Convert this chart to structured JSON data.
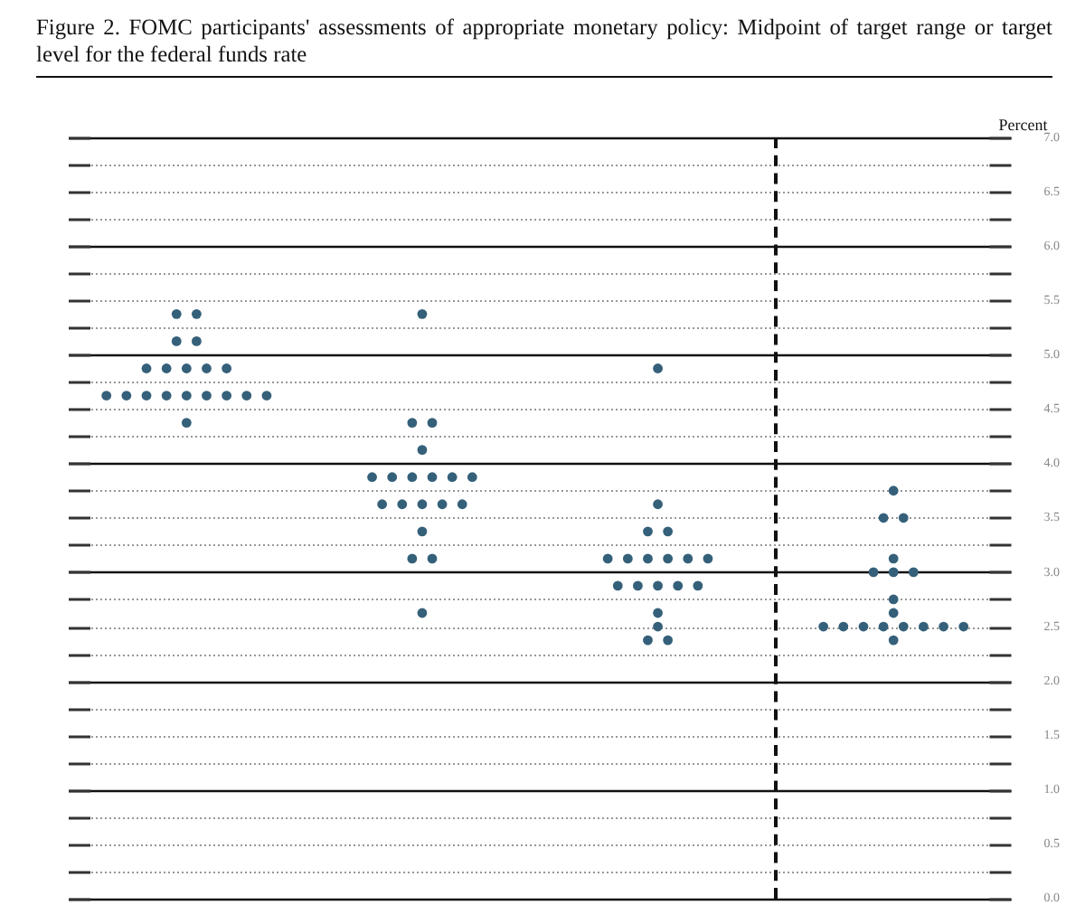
{
  "chart_data": {
    "type": "scatter",
    "title": "Figure 2.  FOMC participants' assessments of appropriate monetary policy: Midpoint of target range or target level for the federal funds rate",
    "ylabel": "Percent",
    "categories": [
      null,
      null,
      null,
      null
    ],
    "series": [
      {
        "color": "#35607a",
        "values": [
          5.375,
          5.375,
          4.875,
          3.75
        ]
      },
      {
        "color": "#35607a",
        "values": [
          5.375,
          4.375,
          3.625,
          3.5
        ]
      },
      {
        "color": "#35607a",
        "values": [
          5.125,
          4.375,
          3.375,
          3.5
        ]
      },
      {
        "color": "#35607a",
        "values": [
          5.125,
          4.125,
          3.375,
          3.125
        ]
      },
      {
        "color": "#35607a",
        "values": [
          4.875,
          3.875,
          3.125,
          3.0
        ]
      },
      {
        "color": "#35607a",
        "values": [
          4.875,
          3.875,
          3.125,
          3.0
        ]
      },
      {
        "color": "#35607a",
        "values": [
          4.875,
          3.875,
          3.125,
          3.0
        ]
      },
      {
        "color": "#35607a",
        "values": [
          4.875,
          3.875,
          3.125,
          2.75
        ]
      },
      {
        "color": "#35607a",
        "values": [
          4.875,
          3.875,
          3.125,
          2.625
        ]
      },
      {
        "color": "#35607a",
        "values": [
          4.625,
          3.875,
          3.125,
          2.5
        ]
      },
      {
        "color": "#35607a",
        "values": [
          4.625,
          3.625,
          2.875,
          2.5
        ]
      },
      {
        "color": "#35607a",
        "values": [
          4.625,
          3.625,
          2.875,
          2.5
        ]
      },
      {
        "color": "#35607a",
        "values": [
          4.625,
          3.625,
          2.875,
          2.5
        ]
      },
      {
        "color": "#35607a",
        "values": [
          4.625,
          3.625,
          2.875,
          2.5
        ]
      },
      {
        "color": "#35607a",
        "values": [
          4.625,
          3.625,
          2.875,
          2.5
        ]
      },
      {
        "color": "#35607a",
        "values": [
          4.625,
          3.375,
          2.625,
          2.5
        ]
      },
      {
        "color": "#35607a",
        "values": [
          4.625,
          3.125,
          2.5,
          2.5
        ]
      },
      {
        "color": "#35607a",
        "values": [
          4.625,
          3.125,
          2.375,
          2.375
        ]
      },
      {
        "color": "#35607a",
        "values": [
          4.375,
          2.625,
          2.375,
          null
        ]
      }
    ],
    "marker": "circle",
    "grid": true,
    "tick_labels": "y",
    "ylim": [
      0,
      7
    ],
    "yticks": [
      {
        "value": 0,
        "label": "0.0"
      },
      {
        "value": 0.25,
        "label": null
      },
      {
        "value": 0.5,
        "label": "0.5"
      },
      {
        "value": 0.75,
        "label": null
      },
      {
        "value": 1,
        "label": "1.0"
      },
      {
        "value": 1.25,
        "label": null
      },
      {
        "value": 1.5,
        "label": "1.5"
      },
      {
        "value": 1.75,
        "label": null
      },
      {
        "value": 2,
        "label": "2.0"
      },
      {
        "value": 2.25,
        "label": null
      },
      {
        "value": 2.5,
        "label": "2.5"
      },
      {
        "value": 2.75,
        "label": null
      },
      {
        "value": 3,
        "label": "3.0"
      },
      {
        "value": 3.25,
        "label": null
      },
      {
        "value": 3.5,
        "label": "3.5"
      },
      {
        "value": 3.75,
        "label": null
      },
      {
        "value": 4,
        "label": "4.0"
      },
      {
        "value": 4.25,
        "label": null
      },
      {
        "value": 4.5,
        "label": "4.5"
      },
      {
        "value": 4.75,
        "label": null
      },
      {
        "value": 5,
        "label": "5.0"
      },
      {
        "value": 5.25,
        "label": null
      },
      {
        "value": 5.5,
        "label": "5.5"
      },
      {
        "value": 5.75,
        "label": null
      },
      {
        "value": 6,
        "label": "6.0"
      },
      {
        "value": 6.25,
        "label": null
      },
      {
        "value": 6.5,
        "label": "6.5"
      },
      {
        "value": 6.75,
        "label": null
      },
      {
        "value": 7,
        "label": "7.0"
      }
    ]
  }
}
